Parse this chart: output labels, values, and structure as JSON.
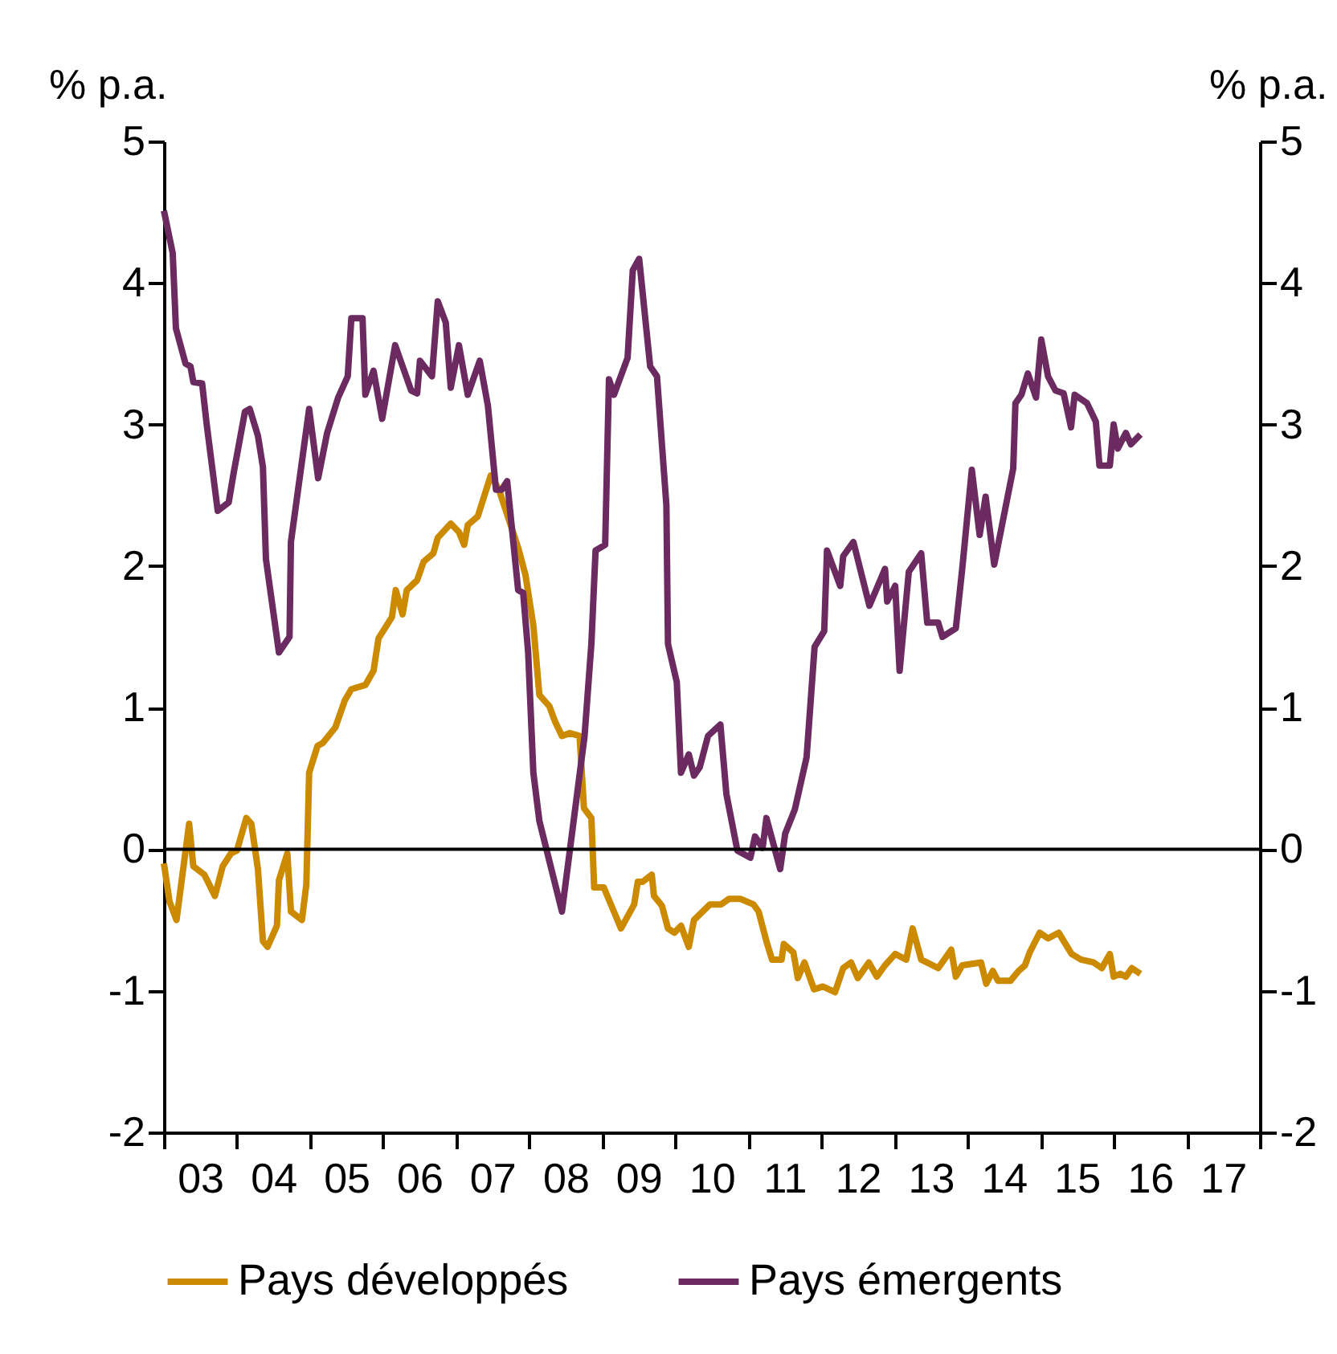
{
  "chart_data": {
    "type": "line",
    "ylabel": "% p.a.",
    "y2label": "% p.a.",
    "xlim": [
      "2003-01-01",
      "2018-01-01"
    ],
    "xticks": [
      {
        "value": "2003",
        "label": null
      },
      {
        "value": "2004",
        "label": null
      },
      {
        "value": "2005",
        "label": null
      },
      {
        "value": "2006",
        "label": null
      },
      {
        "value": "2007",
        "label": null
      },
      {
        "value": "2008",
        "label": null
      },
      {
        "value": "2009",
        "label": null
      },
      {
        "value": "2010",
        "label": null
      },
      {
        "value": "2011",
        "label": null
      },
      {
        "value": "2012",
        "label": null
      },
      {
        "value": "2013",
        "label": null
      },
      {
        "value": "2014",
        "label": null
      },
      {
        "value": "2015",
        "label": null
      },
      {
        "value": "2016",
        "label": null
      },
      {
        "value": "2017",
        "label": null
      },
      {
        "value": "2018",
        "label": null
      },
      {
        "value": "2003-07",
        "label": "03"
      },
      {
        "value": "2004-07",
        "label": "04"
      },
      {
        "value": "2005-07",
        "label": "05"
      },
      {
        "value": "2006-07",
        "label": "06"
      },
      {
        "value": "2007-07",
        "label": "07"
      },
      {
        "value": "2008-07",
        "label": "08"
      },
      {
        "value": "2009-07",
        "label": "09"
      },
      {
        "value": "2010-07",
        "label": "10"
      },
      {
        "value": "2011-07",
        "label": "11"
      },
      {
        "value": "2012-07",
        "label": "12"
      },
      {
        "value": "2013-07",
        "label": "13"
      },
      {
        "value": "2014-07",
        "label": "14"
      },
      {
        "value": "2015-07",
        "label": "15"
      },
      {
        "value": "2016-07",
        "label": "16"
      },
      {
        "value": "2017-07",
        "label": "17"
      }
    ],
    "ylim": [
      -2,
      5
    ],
    "yticks": [
      -2,
      -1,
      0,
      1,
      2,
      3,
      4,
      5
    ],
    "y2lim": [
      -2,
      5
    ],
    "y2ticks": [
      -2,
      -1,
      0,
      1,
      2,
      3,
      4,
      5
    ],
    "ref_lines": [
      {
        "axis": "y",
        "value": 0,
        "color": "#000000"
      }
    ],
    "legend": "bottom",
    "grid": false,
    "marker": "none",
    "line_style": "solid",
    "series": [
      {
        "name": "Pays développés",
        "color": "#cc8a00",
        "x": [
          "2003-01-01",
          "2003-01-29",
          "2003-03-05",
          "2003-05-07",
          "2003-05-28",
          "2003-07-22",
          "2003-09-13",
          "2003-10-22",
          "2003-12-02",
          "2004-01-01",
          "2004-02-17",
          "2004-03-13",
          "2004-04-15",
          "2004-05-10",
          "2004-06-02",
          "2004-07-19",
          "2004-07-29",
          "2004-09-09",
          "2004-09-27",
          "2004-11-21",
          "2004-12-13",
          "2004-12-27",
          "2005-02-07",
          "2005-03-05",
          "2005-05-07",
          "2005-06-23",
          "2005-07-26",
          "2005-10-04",
          "2005-11-14",
          "2005-12-09",
          "2006-02-14",
          "2006-03-05",
          "2006-04-08",
          "2006-04-29",
          "2006-06-20",
          "2006-07-22",
          "2006-09-09",
          "2006-10-01",
          "2006-12-05",
          "2007-01-15",
          "2007-02-10",
          "2007-02-28",
          "2007-04-19",
          "2007-06-23",
          "2007-08-03",
          "2007-11-07",
          "2007-12-13",
          "2008-01-22",
          "2008-02-21",
          "2008-04-11",
          "2008-05-10",
          "2008-06-13",
          "2008-07-22",
          "2008-09-09",
          "2008-10-01",
          "2008-11-07",
          "2008-11-21",
          "2009-01-08",
          "2009-04-04",
          "2009-06-09",
          "2009-06-27",
          "2009-07-22",
          "2009-09-05",
          "2009-09-16",
          "2009-10-26",
          "2009-11-25",
          "2009-12-27",
          "2010-01-29",
          "2010-03-09",
          "2010-04-04",
          "2010-06-23",
          "2010-08-17",
          "2010-09-27",
          "2010-11-21",
          "2011-01-26",
          "2011-02-21",
          "2011-04-01",
          "2011-04-29",
          "2011-06-16",
          "2011-06-27",
          "2011-08-14",
          "2011-09-05",
          "2011-10-08",
          "2011-11-25",
          "2012-01-08",
          "2012-03-09",
          "2012-04-19",
          "2012-05-28",
          "2012-07-01",
          "2012-08-25",
          "2012-10-04",
          "2012-11-14",
          "2013-01-04",
          "2013-02-28",
          "2013-04-01",
          "2013-05-14",
          "2013-08-07",
          "2013-10-11",
          "2013-11-03",
          "2013-12-05",
          "2014-03-09",
          "2014-04-04",
          "2014-05-07",
          "2014-06-02",
          "2014-08-03",
          "2014-09-13",
          "2014-10-15",
          "2014-11-07",
          "2014-12-27",
          "2015-02-07",
          "2015-04-01",
          "2015-06-05",
          "2015-07-22",
          "2015-09-23",
          "2015-11-03",
          "2015-12-13",
          "2016-01-01",
          "2016-02-03",
          "2016-03-02",
          "2016-04-01",
          "2016-05-14"
        ],
        "values": [
          -0.1,
          -0.37,
          -0.5,
          0.18,
          -0.12,
          -0.18,
          -0.33,
          -0.12,
          -0.03,
          -0.01,
          0.22,
          0.18,
          -0.14,
          -0.65,
          -0.69,
          -0.54,
          -0.22,
          -0.03,
          -0.44,
          -0.5,
          -0.25,
          0.54,
          0.73,
          0.75,
          0.86,
          1.05,
          1.13,
          1.16,
          1.26,
          1.49,
          1.64,
          1.83,
          1.66,
          1.83,
          1.9,
          2.03,
          2.09,
          2.2,
          2.3,
          2.24,
          2.15,
          2.29,
          2.35,
          2.64,
          2.54,
          2.13,
          1.94,
          1.58,
          1.09,
          1.01,
          0.9,
          0.8,
          0.82,
          0.8,
          0.29,
          0.22,
          -0.27,
          -0.27,
          -0.56,
          -0.39,
          -0.23,
          -0.23,
          -0.18,
          -0.33,
          -0.4,
          -0.56,
          -0.59,
          -0.54,
          -0.69,
          -0.5,
          -0.39,
          -0.39,
          -0.35,
          -0.35,
          -0.39,
          -0.44,
          -0.65,
          -0.78,
          -0.78,
          -0.67,
          -0.73,
          -0.91,
          -0.8,
          -0.99,
          -0.97,
          -1.01,
          -0.84,
          -0.8,
          -0.91,
          -0.8,
          -0.9,
          -0.82,
          -0.74,
          -0.78,
          -0.56,
          -0.78,
          -0.84,
          -0.71,
          -0.9,
          -0.82,
          -0.8,
          -0.95,
          -0.86,
          -0.93,
          -0.93,
          -0.86,
          -0.82,
          -0.73,
          -0.59,
          -0.63,
          -0.59,
          -0.74,
          -0.78,
          -0.8,
          -0.84,
          -0.74,
          -0.9,
          -0.88,
          -0.9,
          -0.84,
          -0.88
        ]
      },
      {
        "name": "Pays émergents",
        "color": "#6b2a60",
        "x": [
          "2003-01-01",
          "2003-02-14",
          "2003-03-02",
          "2003-04-19",
          "2003-05-14",
          "2003-05-28",
          "2003-07-11",
          "2003-08-03",
          "2003-09-27",
          "2003-11-21",
          "2003-12-16",
          "2004-02-10",
          "2004-03-05",
          "2004-04-15",
          "2004-05-10",
          "2004-05-25",
          "2004-07-29",
          "2004-09-20",
          "2004-09-27",
          "2004-12-27",
          "2005-02-10",
          "2005-03-27",
          "2005-05-21",
          "2005-07-08",
          "2005-07-26",
          "2005-09-20",
          "2005-10-04",
          "2005-11-14",
          "2005-12-27",
          "2006-03-02",
          "2006-05-21",
          "2006-06-20",
          "2006-07-04",
          "2006-09-02",
          "2006-10-01",
          "2006-11-10",
          "2006-12-05",
          "2007-01-15",
          "2007-02-28",
          "2007-04-29",
          "2007-06-09",
          "2007-07-19",
          "2007-08-17",
          "2007-09-13",
          "2007-11-07",
          "2007-12-02",
          "2007-12-27",
          "2008-01-22",
          "2008-02-21",
          "2008-06-13",
          "2008-10-04",
          "2008-11-07",
          "2008-11-28",
          "2009-01-15",
          "2009-02-03",
          "2009-02-28",
          "2009-05-07",
          "2009-06-02",
          "2009-07-04",
          "2009-08-28",
          "2009-10-01",
          "2009-11-17",
          "2009-11-25",
          "2010-01-08",
          "2010-01-29",
          "2010-03-09",
          "2010-04-04",
          "2010-05-03",
          "2010-06-13",
          "2010-08-14",
          "2010-09-13",
          "2010-11-07",
          "2011-01-11",
          "2011-02-03",
          "2011-03-13",
          "2011-04-01",
          "2011-06-09",
          "2011-07-04",
          "2011-08-21",
          "2011-10-19",
          "2011-11-28",
          "2012-01-15",
          "2012-01-29",
          "2012-04-04",
          "2012-04-19",
          "2012-06-09",
          "2012-08-28",
          "2012-11-14",
          "2012-11-25",
          "2013-01-04",
          "2013-01-26",
          "2013-03-13",
          "2013-05-14",
          "2013-06-13",
          "2013-08-07",
          "2013-08-28",
          "2013-11-03",
          "2013-12-05",
          "2014-01-22",
          "2014-03-02",
          "2014-04-01",
          "2014-05-14",
          "2014-08-17",
          "2014-08-28",
          "2014-09-27",
          "2014-10-29",
          "2014-12-09",
          "2015-01-04",
          "2015-02-07",
          "2015-03-16",
          "2015-04-26",
          "2015-06-02",
          "2015-06-20",
          "2015-08-21",
          "2015-10-04",
          "2015-10-22",
          "2015-12-13",
          "2016-01-01",
          "2016-01-22",
          "2016-03-02",
          "2016-03-27",
          "2016-05-14"
        ],
        "values": [
          4.51,
          4.21,
          3.68,
          3.43,
          3.41,
          3.3,
          3.29,
          3.0,
          2.39,
          2.45,
          2.66,
          3.09,
          3.11,
          2.92,
          2.7,
          2.05,
          1.39,
          1.5,
          2.17,
          3.11,
          2.62,
          2.94,
          3.19,
          3.34,
          3.75,
          3.75,
          3.21,
          3.38,
          3.04,
          3.56,
          3.24,
          3.22,
          3.45,
          3.34,
          3.87,
          3.72,
          3.26,
          3.56,
          3.21,
          3.45,
          3.13,
          2.54,
          2.54,
          2.6,
          1.83,
          1.81,
          1.39,
          0.54,
          0.2,
          -0.44,
          0.8,
          1.45,
          2.11,
          2.15,
          3.32,
          3.21,
          3.47,
          4.09,
          4.17,
          3.41,
          3.34,
          2.43,
          1.45,
          1.18,
          0.54,
          0.67,
          0.52,
          0.58,
          0.8,
          0.88,
          0.39,
          -0.01,
          -0.06,
          0.09,
          0.01,
          0.22,
          -0.14,
          0.11,
          0.28,
          0.65,
          1.43,
          1.54,
          2.11,
          1.86,
          2.07,
          2.17,
          1.72,
          1.98,
          1.75,
          1.86,
          1.26,
          1.96,
          2.09,
          1.6,
          1.6,
          1.5,
          1.56,
          1.98,
          2.68,
          2.22,
          2.49,
          2.01,
          2.69,
          3.15,
          3.21,
          3.36,
          3.19,
          3.6,
          3.34,
          3.24,
          3.22,
          2.98,
          3.21,
          3.15,
          3.02,
          2.71,
          2.71,
          3.0,
          2.83,
          2.94,
          2.86,
          2.93
        ]
      }
    ]
  }
}
